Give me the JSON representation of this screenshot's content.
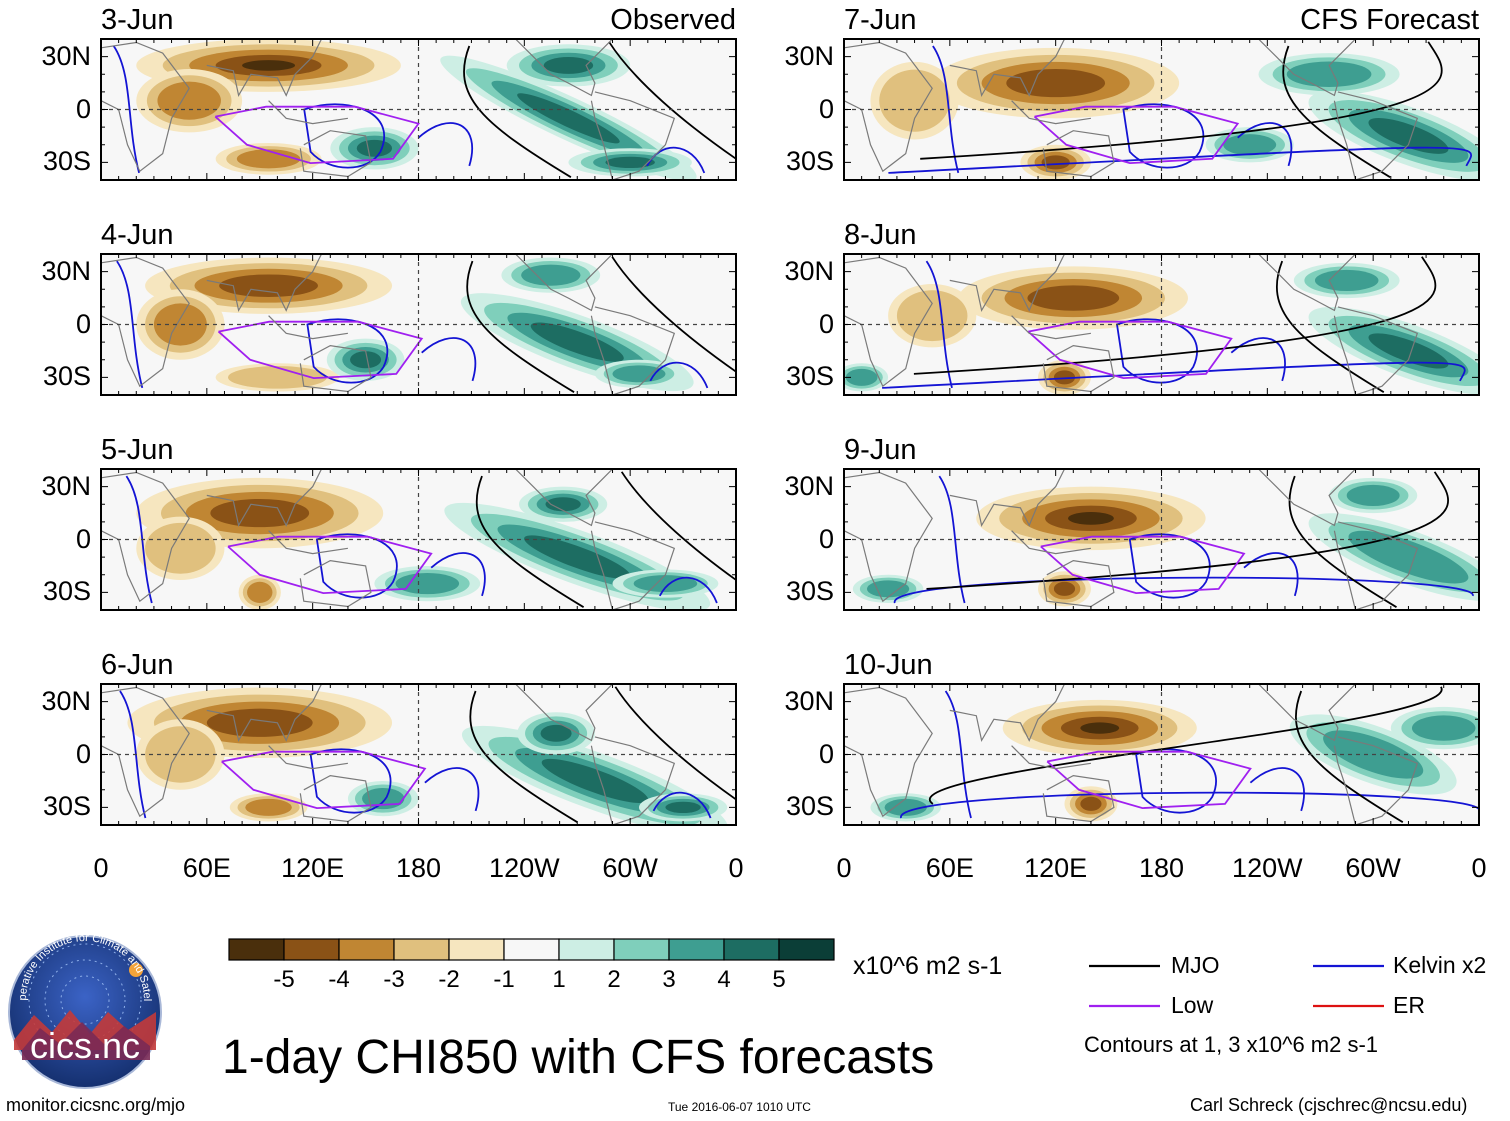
{
  "chart_data": {
    "type": "heatmap",
    "title": "1-day CHI850 with CFS forecasts",
    "variable": "CHI850",
    "units": "x10^6 m2 s-1",
    "xlabel": "",
    "ylabel": "",
    "x_ticks": [
      "0",
      "60E",
      "120E",
      "180",
      "120W",
      "60W",
      "0"
    ],
    "x_range_deg_east": [
      0,
      360
    ],
    "y_ticks": [
      "30N",
      "0",
      "30S"
    ],
    "y_range_deg_north": [
      -40,
      40
    ],
    "panels": [
      {
        "date": "3-Jun",
        "label": "Observed"
      },
      {
        "date": "4-Jun",
        "label": ""
      },
      {
        "date": "5-Jun",
        "label": ""
      },
      {
        "date": "6-Jun",
        "label": ""
      },
      {
        "date": "7-Jun",
        "label": "CFS Forecast"
      },
      {
        "date": "8-Jun",
        "label": ""
      },
      {
        "date": "9-Jun",
        "label": ""
      },
      {
        "date": "10-Jun",
        "label": ""
      }
    ],
    "colorbar": {
      "labels": [
        "-5",
        "-4",
        "-3",
        "-2",
        "-1",
        "1",
        "2",
        "3",
        "4",
        "5"
      ],
      "colors": [
        "#4a2f0c",
        "#8a5216",
        "#c08633",
        "#e0c07e",
        "#f6e6bf",
        "#f7f7f7",
        "#cdeee4",
        "#7fcfbb",
        "#3e9e91",
        "#1d6d62",
        "#0b3e37"
      ]
    },
    "contours": [
      {
        "name": "MJO",
        "color": "#000000"
      },
      {
        "name": "Kelvin x2",
        "color": "#1414d4"
      },
      {
        "name": "Low",
        "color": "#a020f0"
      },
      {
        "name": "ER",
        "color": "#dd1111"
      }
    ],
    "contour_note": "Contours at 1, 3 x10^6 m2 s-1"
  },
  "footer": {
    "left": "monitor.cicsnc.org/mjo",
    "center": "Tue 2016-06-07 1010 UTC",
    "right": "Carl Schreck (cjschrec@ncsu.edu)"
  },
  "logo": {
    "ring_text": "Cooperative Institute for Climate and Satellites",
    "name": "cics.nc"
  }
}
